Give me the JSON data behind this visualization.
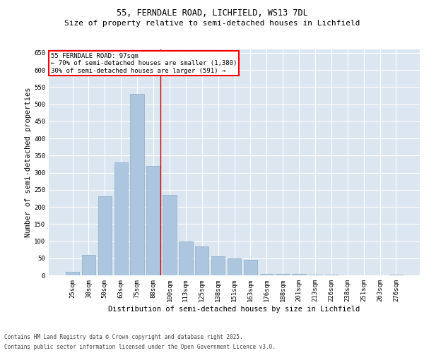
{
  "title1": "55, FERNDALE ROAD, LICHFIELD, WS13 7DL",
  "title2": "Size of property relative to semi-detached houses in Lichfield",
  "xlabel": "Distribution of semi-detached houses by size in Lichfield",
  "ylabel": "Number of semi-detached properties",
  "annotation_title": "55 FERNDALE ROAD: 97sqm",
  "annotation_line1": "← 70% of semi-detached houses are smaller (1,380)",
  "annotation_line2": "30% of semi-detached houses are larger (591) →",
  "footer1": "Contains HM Land Registry data © Crown copyright and database right 2025.",
  "footer2": "Contains public sector information licensed under the Open Government Licence v3.0.",
  "bar_color": "#adc6df",
  "bar_edge_color": "#8aaec8",
  "background_color": "#dce6f0",
  "grid_color": "#ffffff",
  "redline_color": "#cc0000",
  "categories": [
    "25sqm",
    "38sqm",
    "50sqm",
    "63sqm",
    "75sqm",
    "88sqm",
    "100sqm",
    "113sqm",
    "125sqm",
    "138sqm",
    "151sqm",
    "163sqm",
    "176sqm",
    "188sqm",
    "201sqm",
    "213sqm",
    "226sqm",
    "238sqm",
    "251sqm",
    "263sqm",
    "276sqm"
  ],
  "values": [
    10,
    60,
    230,
    330,
    530,
    320,
    235,
    100,
    85,
    55,
    50,
    45,
    5,
    5,
    5,
    2,
    2,
    0,
    0,
    0,
    2
  ],
  "redline_x": 5.43,
  "ylim": [
    0,
    660
  ],
  "yticks": [
    0,
    50,
    100,
    150,
    200,
    250,
    300,
    350,
    400,
    450,
    500,
    550,
    600,
    650
  ],
  "title1_fontsize": 8.5,
  "title2_fontsize": 8.0,
  "ylabel_fontsize": 7.5,
  "xlabel_fontsize": 7.5,
  "tick_fontsize": 6.5,
  "annot_fontsize": 6.5,
  "footer_fontsize": 5.5
}
